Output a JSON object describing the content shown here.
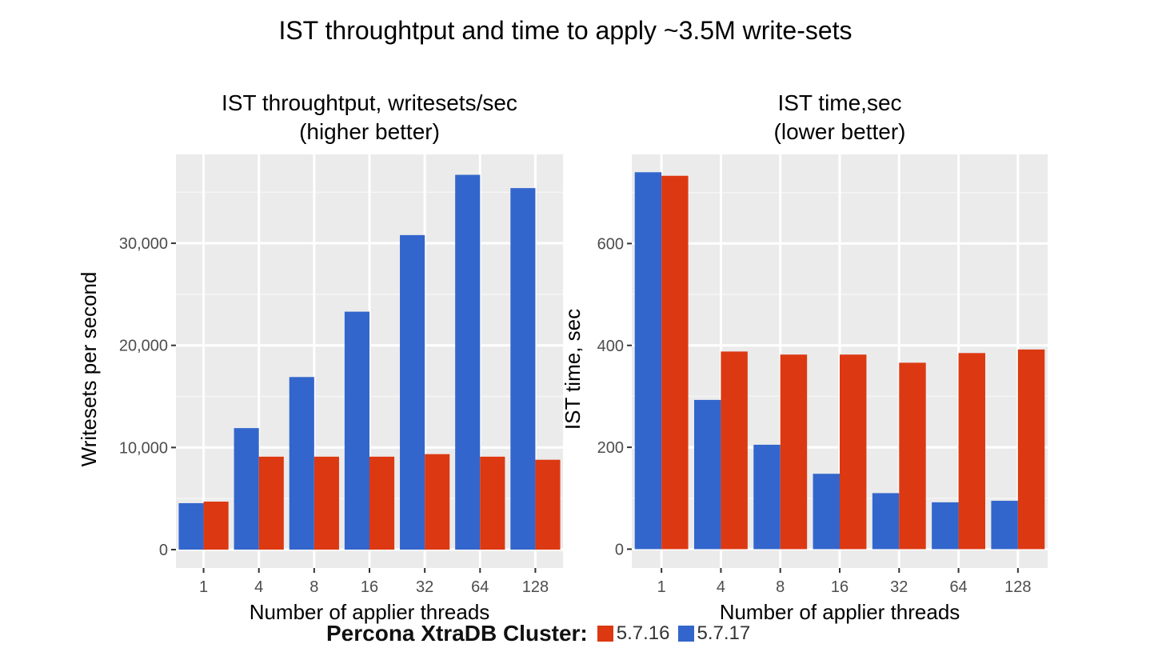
{
  "title": "IST throughtput and time to apply ~3.5M write-sets",
  "colors": {
    "s5716": "#dc3912",
    "s5717": "#3366cc",
    "panel_bg": "#ebebeb",
    "grid": "#ffffff"
  },
  "legend": {
    "title": "Percona XtraDB Cluster:",
    "items": [
      {
        "label": "5.7.16",
        "color": "#dc3912"
      },
      {
        "label": "5.7.17",
        "color": "#3366cc"
      }
    ]
  },
  "chart_data": [
    {
      "type": "bar",
      "title": "IST throughtput, writesets/sec",
      "subtitle": "(higher better)",
      "xlabel": "Number of applier threads",
      "ylabel": "Writesets per second",
      "categories": [
        "1",
        "4",
        "8",
        "16",
        "32",
        "64",
        "128"
      ],
      "series": [
        {
          "name": "5.7.17",
          "color": "#3366cc",
          "values": [
            4550,
            11900,
            16900,
            23300,
            30800,
            36700,
            35400
          ]
        },
        {
          "name": "5.7.16",
          "color": "#dc3912",
          "values": [
            4700,
            9100,
            9100,
            9100,
            9350,
            9100,
            8800
          ]
        }
      ],
      "ylim": [
        -1800,
        38700
      ],
      "yticks": [
        0,
        10000,
        20000,
        30000
      ],
      "ytick_labels": [
        "0",
        "10,000",
        "20,000",
        "30,000"
      ],
      "grid": true
    },
    {
      "type": "bar",
      "title": "IST time,sec",
      "subtitle": "(lower better)",
      "xlabel": "Number of applier threads",
      "ylabel": "IST time, sec",
      "categories": [
        "1",
        "4",
        "8",
        "16",
        "32",
        "64",
        "128"
      ],
      "series": [
        {
          "name": "5.7.17",
          "color": "#3366cc",
          "values": [
            740,
            293,
            205,
            148,
            110,
            92,
            95
          ]
        },
        {
          "name": "5.7.16",
          "color": "#dc3912",
          "values": [
            733,
            388,
            382,
            382,
            366,
            385,
            392
          ]
        }
      ],
      "ylim": [
        -37,
        775
      ],
      "yticks": [
        0,
        200,
        400,
        600
      ],
      "ytick_labels": [
        "0",
        "200",
        "400",
        "600"
      ],
      "grid": true
    }
  ]
}
